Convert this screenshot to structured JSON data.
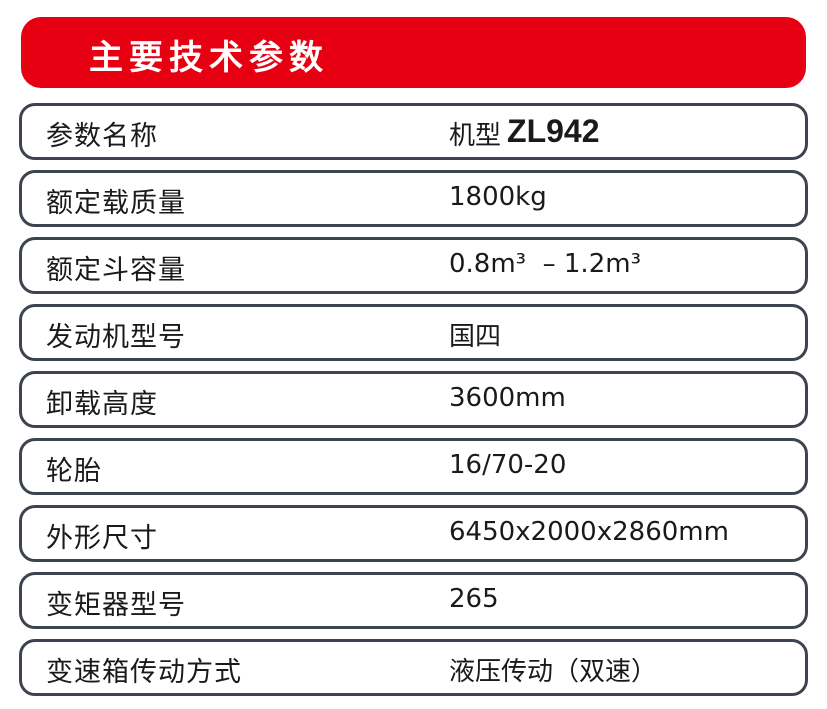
{
  "title": "主要技术参数",
  "header_row": {
    "label": "参数名称",
    "model_prefix": "机型",
    "model": "ZL942"
  },
  "rows": [
    {
      "label": "额定载质量",
      "value": "1800kg"
    },
    {
      "label": "额定斗容量",
      "value": "0.8m³  – 1.2m³"
    },
    {
      "label": "发动机型号",
      "value": "国四"
    },
    {
      "label": "卸载高度",
      "value": "3600mm"
    },
    {
      "label": "轮胎",
      "value": "16/70-20"
    },
    {
      "label": "外形尺寸",
      "value": "6450x2000x2860mm"
    },
    {
      "label": "变矩器型号",
      "value": "265"
    },
    {
      "label": "变速箱传动方式",
      "value": "液压传动（双速）"
    }
  ],
  "colors": {
    "accent": "#e60012",
    "border": "#3d4450"
  }
}
